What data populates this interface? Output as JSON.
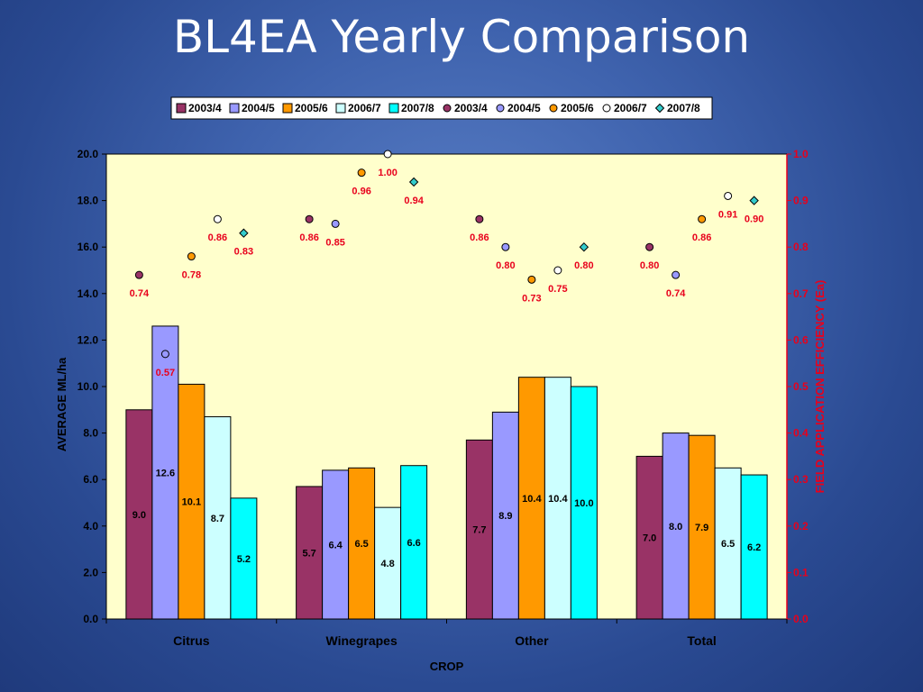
{
  "slide": {
    "title": "BL4EA Yearly Comparison"
  },
  "chart_data": {
    "type": "bar",
    "categories": [
      "Citrus",
      "Winegrapes",
      "Other",
      "Total"
    ],
    "xlabel": "CROP",
    "ylabel": "AVERAGE ML/ha",
    "y2label": "FIELD APPLICATION EFFICIENCY (Ea)",
    "ylim": [
      0,
      20
    ],
    "yticks": [
      "0.0",
      "2.0",
      "4.0",
      "6.0",
      "8.0",
      "10.0",
      "12.0",
      "14.0",
      "16.0",
      "18.0",
      "20.0"
    ],
    "y2lim": [
      0,
      1
    ],
    "y2ticks": [
      "0.0",
      "0.1",
      "0.2",
      "0.3",
      "0.4",
      "0.5",
      "0.6",
      "0.7",
      "0.8",
      "0.9",
      "1.0"
    ],
    "grid": false,
    "legend_position": "top",
    "bar_series": [
      {
        "name": "2003/4",
        "color": "#993366",
        "values": [
          9.0,
          5.7,
          7.7,
          7.0
        ],
        "labels": [
          "9.0",
          "5.7",
          "7.7",
          "7.0"
        ]
      },
      {
        "name": "2004/5",
        "color": "#9999ff",
        "values": [
          12.6,
          6.4,
          8.9,
          8.0
        ],
        "labels": [
          "12.6",
          "6.4",
          "8.9",
          "8.0"
        ]
      },
      {
        "name": "2005/6",
        "color": "#ff9900",
        "values": [
          10.1,
          6.5,
          10.4,
          7.9
        ],
        "labels": [
          "10.1",
          "6.5",
          "10.4",
          "7.9"
        ]
      },
      {
        "name": "2006/7",
        "color": "#ccffff",
        "values": [
          8.7,
          4.8,
          10.4,
          6.5
        ],
        "labels": [
          "8.7",
          "4.8",
          "10.4",
          "6.5"
        ]
      },
      {
        "name": "2007/8",
        "color": "#00ffff",
        "values": [
          5.2,
          6.6,
          10.0,
          6.2
        ],
        "labels": [
          "5.2",
          "6.6",
          "10.0",
          "6.2"
        ]
      }
    ],
    "marker_series": [
      {
        "name": "2003/4",
        "color": "#993366",
        "shape": "circle",
        "values": [
          0.74,
          0.86,
          0.86,
          0.8
        ],
        "labels": [
          "0.74",
          "0.86",
          "0.86",
          "0.80"
        ]
      },
      {
        "name": "2004/5",
        "color": "#9999ff",
        "shape": "circle",
        "values": [
          0.57,
          0.85,
          0.8,
          0.74
        ],
        "labels": [
          "0.57",
          "0.85",
          "0.80",
          "0.74"
        ]
      },
      {
        "name": "2005/6",
        "color": "#ff9900",
        "shape": "circle",
        "values": [
          0.78,
          0.96,
          0.73,
          0.86
        ],
        "labels": [
          "0.78",
          "0.96",
          "0.73",
          "0.86"
        ]
      },
      {
        "name": "2006/7",
        "color": "#ffffff",
        "shape": "circle",
        "values": [
          0.86,
          1.0,
          0.75,
          0.91
        ],
        "labels": [
          "0.86",
          "1.00",
          "0.75",
          "0.91"
        ]
      },
      {
        "name": "2007/8",
        "color": "#33cccc",
        "shape": "diamond",
        "values": [
          0.83,
          0.94,
          0.8,
          0.9
        ],
        "labels": [
          "0.83",
          "0.94",
          "0.80",
          "0.90"
        ]
      }
    ],
    "colors": {
      "plot_background": "#ffffcc",
      "secondary_axis": "#e8001c",
      "axis_text": "#000000"
    }
  }
}
